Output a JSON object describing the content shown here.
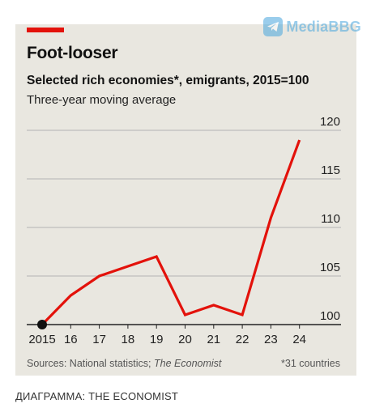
{
  "watermark": {
    "text": "MediaBBG",
    "icon": "telegram-plane-icon",
    "color": "#49a6de"
  },
  "chart_data": {
    "type": "line",
    "title": "Foot-looser",
    "subtitle": "Selected rich economies*, emigrants, 2015=100",
    "note": "Three-year moving average",
    "x": [
      2015,
      2016,
      2017,
      2018,
      2019,
      2020,
      2021,
      2022,
      2023,
      2024
    ],
    "xtick_labels": [
      "2015",
      "16",
      "17",
      "18",
      "19",
      "20",
      "21",
      "22",
      "23",
      "24"
    ],
    "series": [
      {
        "values": [
          100,
          103,
          105,
          106,
          107,
          101,
          102,
          101,
          111,
          119
        ],
        "color": "#e3120b"
      }
    ],
    "ylim": [
      100,
      120
    ],
    "yticks": [
      100,
      105,
      110,
      115,
      120
    ],
    "y_axis_side": "right",
    "grid": true,
    "start_marker": true,
    "source": "Sources: National statistics; ",
    "source_italic": "The Economist",
    "footnote": "*31 countries"
  },
  "credit": "ДИАГРАММА: THE ECONOMIST",
  "colors": {
    "background": "#e9e7e0",
    "line": "#e3120b",
    "accent": "#e3120b",
    "grid": "#b3b3b3"
  }
}
